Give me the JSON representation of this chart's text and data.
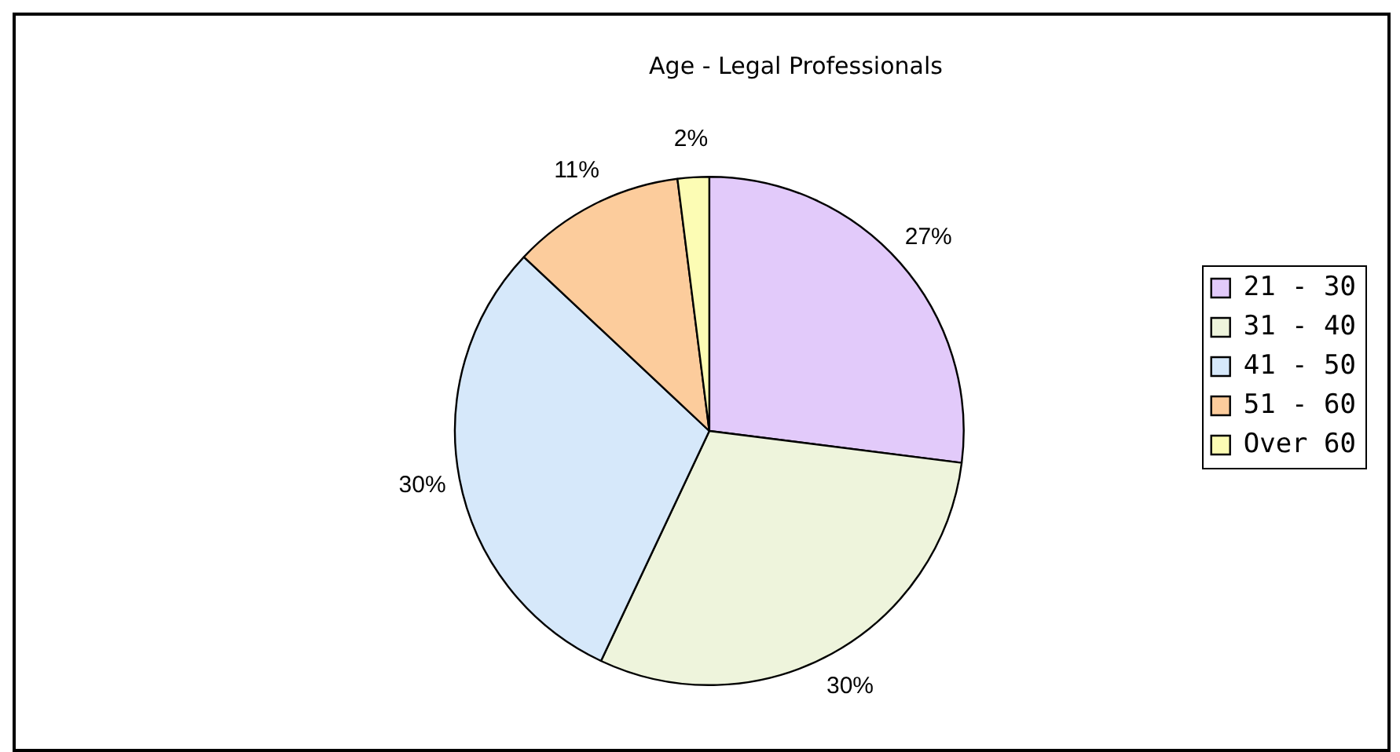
{
  "chart_data": {
    "type": "pie",
    "title": "Age - Legal Professionals",
    "categories": [
      "21 - 30",
      "31 - 40",
      "41 - 50",
      "51 - 60",
      "Over 60"
    ],
    "values": [
      27,
      30,
      30,
      11,
      2
    ],
    "colors": [
      "#e2cafa",
      "#eef4dc",
      "#d6e8fa",
      "#fccc9c",
      "#fcfcb4"
    ],
    "value_labels": [
      "27%",
      "30%",
      "30%",
      "11%",
      "2%"
    ],
    "legend": "right"
  }
}
